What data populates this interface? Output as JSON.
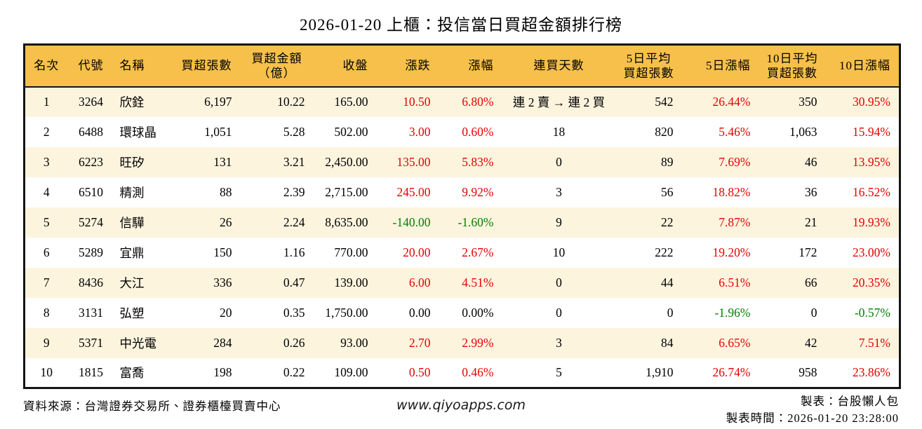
{
  "title": "2026-01-20 上櫃：投信當日買超金額排行榜",
  "colors": {
    "up": "#e60000",
    "down": "#008000",
    "header_bg": "#f6c04b",
    "row_stripe": "#fdf4de"
  },
  "table": {
    "columns": [
      {
        "key": "rank",
        "label": "名次"
      },
      {
        "key": "code",
        "label": "代號"
      },
      {
        "key": "name",
        "label": "名稱"
      },
      {
        "key": "net-buy-lots",
        "label": "買超張數"
      },
      {
        "key": "net-buy-amt",
        "label": "買超金額\n（億）"
      },
      {
        "key": "close",
        "label": "收盤"
      },
      {
        "key": "change",
        "label": "漲跌"
      },
      {
        "key": "change-pct",
        "label": "漲幅"
      },
      {
        "key": "streak-days",
        "label": "連買天數"
      },
      {
        "key": "avg5-lots",
        "label": "5日平均\n買超張數"
      },
      {
        "key": "pct-5d",
        "label": "5日漲幅"
      },
      {
        "key": "avg10-lots",
        "label": "10日平均\n買超張數"
      },
      {
        "key": "pct-10d",
        "label": "10日漲幅"
      }
    ],
    "rows": [
      {
        "cells": [
          {
            "t": "1"
          },
          {
            "t": "3264"
          },
          {
            "t": "欣銓"
          },
          {
            "t": "6,197"
          },
          {
            "t": "10.22"
          },
          {
            "t": "165.00"
          },
          {
            "t": "10.50",
            "tone": "up"
          },
          {
            "t": "6.80%",
            "tone": "up"
          },
          {
            "t": "連 2 賣 → 連 2 買"
          },
          {
            "t": "542"
          },
          {
            "t": "26.44%",
            "tone": "up"
          },
          {
            "t": "350"
          },
          {
            "t": "30.95%",
            "tone": "up"
          }
        ]
      },
      {
        "cells": [
          {
            "t": "2"
          },
          {
            "t": "6488"
          },
          {
            "t": "環球晶"
          },
          {
            "t": "1,051"
          },
          {
            "t": "5.28"
          },
          {
            "t": "502.00"
          },
          {
            "t": "3.00",
            "tone": "up"
          },
          {
            "t": "0.60%",
            "tone": "up"
          },
          {
            "t": "18"
          },
          {
            "t": "820"
          },
          {
            "t": "5.46%",
            "tone": "up"
          },
          {
            "t": "1,063"
          },
          {
            "t": "15.94%",
            "tone": "up"
          }
        ]
      },
      {
        "cells": [
          {
            "t": "3"
          },
          {
            "t": "6223"
          },
          {
            "t": "旺矽"
          },
          {
            "t": "131"
          },
          {
            "t": "3.21"
          },
          {
            "t": "2,450.00"
          },
          {
            "t": "135.00",
            "tone": "up"
          },
          {
            "t": "5.83%",
            "tone": "up"
          },
          {
            "t": "0"
          },
          {
            "t": "89"
          },
          {
            "t": "7.69%",
            "tone": "up"
          },
          {
            "t": "46"
          },
          {
            "t": "13.95%",
            "tone": "up"
          }
        ]
      },
      {
        "cells": [
          {
            "t": "4"
          },
          {
            "t": "6510"
          },
          {
            "t": "精測"
          },
          {
            "t": "88"
          },
          {
            "t": "2.39"
          },
          {
            "t": "2,715.00"
          },
          {
            "t": "245.00",
            "tone": "up"
          },
          {
            "t": "9.92%",
            "tone": "up"
          },
          {
            "t": "3"
          },
          {
            "t": "56"
          },
          {
            "t": "18.82%",
            "tone": "up"
          },
          {
            "t": "36"
          },
          {
            "t": "16.52%",
            "tone": "up"
          }
        ]
      },
      {
        "cells": [
          {
            "t": "5"
          },
          {
            "t": "5274"
          },
          {
            "t": "信驊"
          },
          {
            "t": "26"
          },
          {
            "t": "2.24"
          },
          {
            "t": "8,635.00"
          },
          {
            "t": "-140.00",
            "tone": "down"
          },
          {
            "t": "-1.60%",
            "tone": "down"
          },
          {
            "t": "9"
          },
          {
            "t": "22"
          },
          {
            "t": "7.87%",
            "tone": "up"
          },
          {
            "t": "21"
          },
          {
            "t": "19.93%",
            "tone": "up"
          }
        ]
      },
      {
        "cells": [
          {
            "t": "6"
          },
          {
            "t": "5289"
          },
          {
            "t": "宜鼎"
          },
          {
            "t": "150"
          },
          {
            "t": "1.16"
          },
          {
            "t": "770.00"
          },
          {
            "t": "20.00",
            "tone": "up"
          },
          {
            "t": "2.67%",
            "tone": "up"
          },
          {
            "t": "10"
          },
          {
            "t": "222"
          },
          {
            "t": "19.20%",
            "tone": "up"
          },
          {
            "t": "172"
          },
          {
            "t": "23.00%",
            "tone": "up"
          }
        ]
      },
      {
        "cells": [
          {
            "t": "7"
          },
          {
            "t": "8436"
          },
          {
            "t": "大江"
          },
          {
            "t": "336"
          },
          {
            "t": "0.47"
          },
          {
            "t": "139.00"
          },
          {
            "t": "6.00",
            "tone": "up"
          },
          {
            "t": "4.51%",
            "tone": "up"
          },
          {
            "t": "0"
          },
          {
            "t": "44"
          },
          {
            "t": "6.51%",
            "tone": "up"
          },
          {
            "t": "66"
          },
          {
            "t": "20.35%",
            "tone": "up"
          }
        ]
      },
      {
        "cells": [
          {
            "t": "8"
          },
          {
            "t": "3131"
          },
          {
            "t": "弘塑"
          },
          {
            "t": "20"
          },
          {
            "t": "0.35"
          },
          {
            "t": "1,750.00"
          },
          {
            "t": "0.00"
          },
          {
            "t": "0.00%"
          },
          {
            "t": "0"
          },
          {
            "t": "0"
          },
          {
            "t": "-1.96%",
            "tone": "down"
          },
          {
            "t": "0"
          },
          {
            "t": "-0.57%",
            "tone": "down"
          }
        ]
      },
      {
        "cells": [
          {
            "t": "9"
          },
          {
            "t": "5371"
          },
          {
            "t": "中光電"
          },
          {
            "t": "284"
          },
          {
            "t": "0.26"
          },
          {
            "t": "93.00"
          },
          {
            "t": "2.70",
            "tone": "up"
          },
          {
            "t": "2.99%",
            "tone": "up"
          },
          {
            "t": "3"
          },
          {
            "t": "84"
          },
          {
            "t": "6.65%",
            "tone": "up"
          },
          {
            "t": "42"
          },
          {
            "t": "7.51%",
            "tone": "up"
          }
        ]
      },
      {
        "cells": [
          {
            "t": "10"
          },
          {
            "t": "1815"
          },
          {
            "t": "富喬"
          },
          {
            "t": "198"
          },
          {
            "t": "0.22"
          },
          {
            "t": "109.00"
          },
          {
            "t": "0.50",
            "tone": "up"
          },
          {
            "t": "0.46%",
            "tone": "up"
          },
          {
            "t": "5"
          },
          {
            "t": "1,910"
          },
          {
            "t": "26.74%",
            "tone": "up"
          },
          {
            "t": "958"
          },
          {
            "t": "23.86%",
            "tone": "up"
          }
        ]
      }
    ]
  },
  "footer": {
    "source": "資料來源：台灣證券交易所、證券櫃檯買賣中心",
    "website": "www.qiyoapps.com",
    "maker": "製表：台股懶人包",
    "made_time": "製表時間：2026-01-20 23:28:00"
  }
}
